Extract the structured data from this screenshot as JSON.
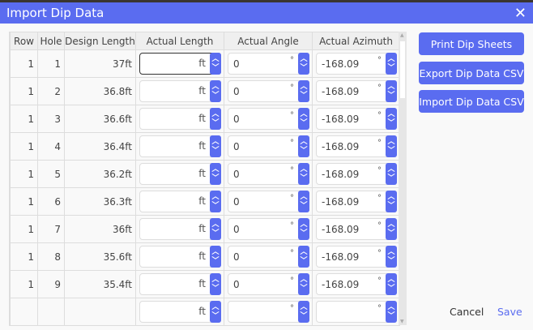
{
  "dialog": {
    "title": "Import Dip Data",
    "close_icon": "close-icon"
  },
  "table": {
    "columns": [
      "Row",
      "Hole",
      "Design Length",
      "Actual Length",
      "Actual Angle",
      "Actual Azimuth"
    ],
    "length_unit": "ft",
    "angle_unit": "°",
    "rows": [
      {
        "row": "1",
        "hole": "1",
        "design": "37ft",
        "actual_length": "",
        "angle": "0",
        "azimuth": "-168.09"
      },
      {
        "row": "1",
        "hole": "2",
        "design": "36.8ft",
        "actual_length": "",
        "angle": "0",
        "azimuth": "-168.09"
      },
      {
        "row": "1",
        "hole": "3",
        "design": "36.6ft",
        "actual_length": "",
        "angle": "0",
        "azimuth": "-168.09"
      },
      {
        "row": "1",
        "hole": "4",
        "design": "36.4ft",
        "actual_length": "",
        "angle": "0",
        "azimuth": "-168.09"
      },
      {
        "row": "1",
        "hole": "5",
        "design": "36.2ft",
        "actual_length": "",
        "angle": "0",
        "azimuth": "-168.09"
      },
      {
        "row": "1",
        "hole": "6",
        "design": "36.3ft",
        "actual_length": "",
        "angle": "0",
        "azimuth": "-168.09"
      },
      {
        "row": "1",
        "hole": "7",
        "design": "36ft",
        "actual_length": "",
        "angle": "0",
        "azimuth": "-168.09"
      },
      {
        "row": "1",
        "hole": "8",
        "design": "35.6ft",
        "actual_length": "",
        "angle": "0",
        "azimuth": "-168.09"
      },
      {
        "row": "1",
        "hole": "9",
        "design": "35.4ft",
        "actual_length": "",
        "angle": "0",
        "azimuth": "-168.09"
      },
      {
        "row": "",
        "hole": "",
        "design": "",
        "actual_length": "",
        "angle": "",
        "azimuth": ""
      }
    ]
  },
  "actions": {
    "print": "Print Dip Sheets",
    "export": "Export Dip Data CSV",
    "import": "Import Dip Data CSV"
  },
  "footer": {
    "cancel": "Cancel",
    "save": "Save"
  },
  "colors": {
    "accent": "#5a6cf0"
  }
}
